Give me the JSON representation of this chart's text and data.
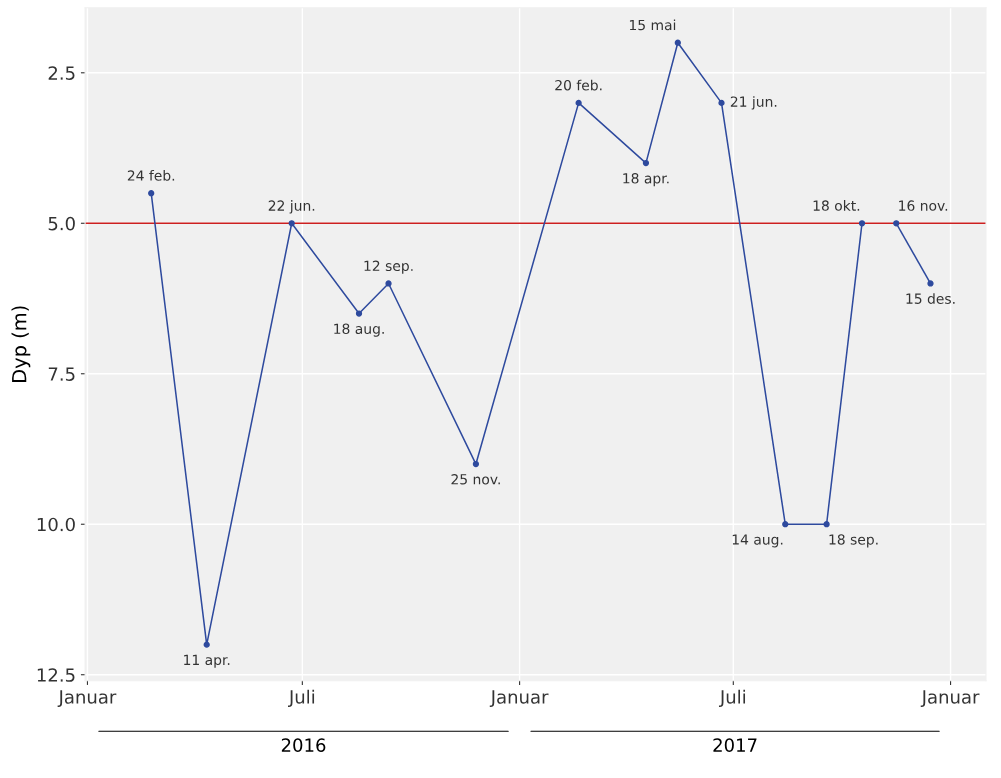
{
  "chart_data": {
    "type": "line",
    "ylabel": "Dyp (m)",
    "series": [
      {
        "color": "#2e4a9e",
        "x": [
          "2016-02-24",
          "2016-04-11",
          "2016-06-22",
          "2016-08-18",
          "2016-09-12",
          "2016-11-25",
          "2017-02-20",
          "2017-04-18",
          "2017-05-15",
          "2017-06-21",
          "2017-08-14",
          "2017-09-18",
          "2017-10-18"
        ],
        "values": [
          4.5,
          12.0,
          5.0,
          6.5,
          6.0,
          9.0,
          3.0,
          4.0,
          2.0,
          3.0,
          10.0,
          10.0,
          5.0
        ]
      },
      {
        "color": "#2e4a9e",
        "x": [
          "2017-11-16",
          "2017-12-15"
        ],
        "values": [
          5.0,
          6.0
        ]
      }
    ],
    "marker": "circle",
    "line_style": "solid",
    "grid": true,
    "legend": false,
    "xlim": [
      "2015-12-30",
      "2018-01-31"
    ],
    "xticks": [
      {
        "value": "2016-01-01",
        "label": "Januar"
      },
      {
        "value": "2016-07-01",
        "label": "Juli"
      },
      {
        "value": "2017-01-01",
        "label": "Januar"
      },
      {
        "value": "2017-07-01",
        "label": "Juli"
      },
      {
        "value": "2018-01-01",
        "label": "Januar"
      }
    ],
    "ylim": [
      12.6,
      1.42
    ],
    "yticks": [
      {
        "value": 2.5,
        "label": "2.5"
      },
      {
        "value": 5.0,
        "label": "5.0"
      },
      {
        "value": 7.5,
        "label": "7.5"
      },
      {
        "value": 10.0,
        "label": "10.0"
      },
      {
        "value": 12.5,
        "label": "12.5"
      }
    ],
    "ref_lines": [
      {
        "axis": "y",
        "value": 5.0,
        "color": "#cc1f1f"
      }
    ],
    "annotations": [
      {
        "text": "24 feb.",
        "x": "2016-02-24",
        "y": 4.5
      },
      {
        "text": "11 apr.",
        "x": "2016-04-11",
        "y": 12.0
      },
      {
        "text": "22 jun.",
        "x": "2016-06-22",
        "y": 5.0
      },
      {
        "text": "18 aug.",
        "x": "2016-08-18",
        "y": 6.5
      },
      {
        "text": "12 sep.",
        "x": "2016-09-12",
        "y": 6.0
      },
      {
        "text": "25 nov.",
        "x": "2016-11-25",
        "y": 9.0
      },
      {
        "text": "20 feb.",
        "x": "2017-02-20",
        "y": 3.0
      },
      {
        "text": "18 apr.",
        "x": "2017-04-18",
        "y": 4.0
      },
      {
        "text": "15 mai",
        "x": "2017-05-15",
        "y": 2.0
      },
      {
        "text": "21 jun.",
        "x": "2017-06-21",
        "y": 3.0
      },
      {
        "text": "14 aug.",
        "x": "2017-08-14",
        "y": 10.0
      },
      {
        "text": "18 sep.",
        "x": "2017-09-18",
        "y": 10.0
      },
      {
        "text": "18 okt.",
        "x": "2017-10-18",
        "y": 5.0
      },
      {
        "text": "16 nov.",
        "x": "2017-11-16",
        "y": 5.0
      },
      {
        "text": "15 des.",
        "x": "2017-12-15",
        "y": 6.0
      },
      "2016",
      "2017"
    ]
  }
}
